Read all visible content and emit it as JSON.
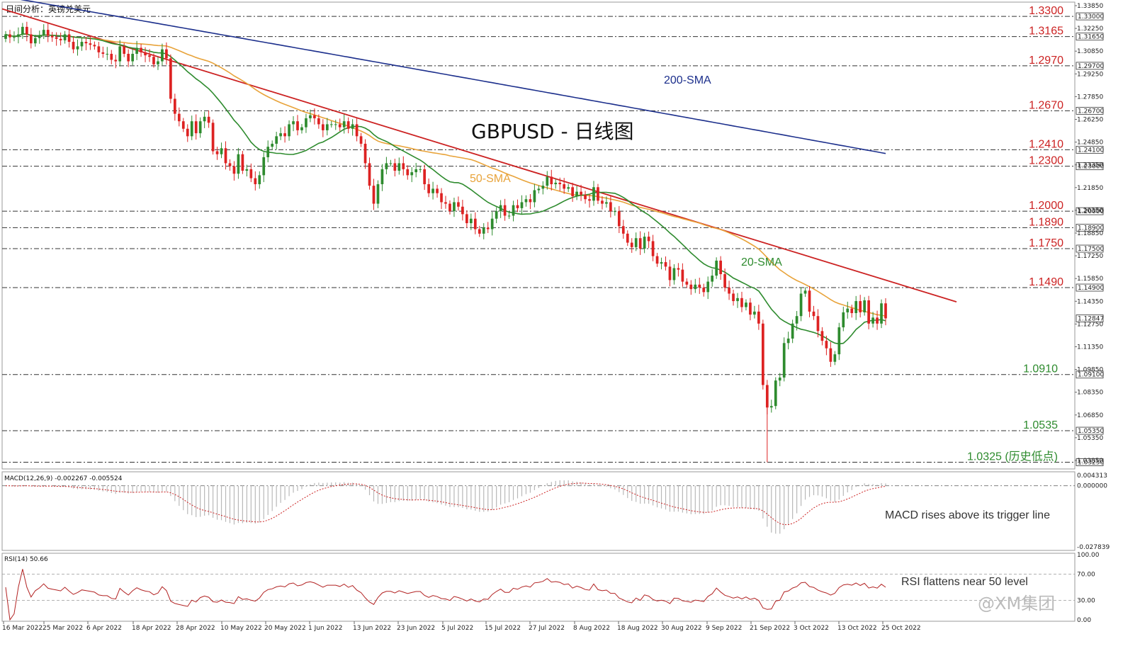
{
  "chart_data": {
    "type": "candlestick",
    "header_label": "日间分析：英镑兑美元",
    "title": "GBPUSD - 日线图",
    "x_ticks": [
      "16 Mar 2022",
      "25 Mar 2022",
      "6 Apr 2022",
      "18 Apr 2022",
      "28 Apr 2022",
      "10 May 2022",
      "20 May 2022",
      "1 Jun 2022",
      "13 Jun 2022",
      "23 Jun 2022",
      "5 Jul 2022",
      "15 Jul 2022",
      "27 Jul 2022",
      "8 Aug 2022",
      "18 Aug 2022",
      "30 Aug 2022",
      "9 Sep 2022",
      "21 Sep 2022",
      "3 Oct 2022",
      "13 Oct 2022",
      "25 Oct 2022"
    ],
    "price_axis_labels": [
      "1.33850",
      "1.32250",
      "1.30850",
      "1.29250",
      "1.27850",
      "1.26250",
      "1.24850",
      "1.23350",
      "1.21850",
      "1.20350",
      "1.18850",
      "1.17250",
      "1.15850",
      "1.14350",
      "1.12750",
      "1.11350",
      "1.09850",
      "1.08350",
      "1.06850",
      "1.05350",
      "1.03850"
    ],
    "levels": [
      {
        "value": 1.33,
        "label": "1.3300",
        "box": "1.33000",
        "color": "#cc2222"
      },
      {
        "value": 1.3165,
        "label": "1.3165",
        "box": "1.31650",
        "color": "#cc2222"
      },
      {
        "value": 1.297,
        "label": "1.2970",
        "box": "1.29700",
        "color": "#cc2222"
      },
      {
        "value": 1.267,
        "label": "1.2670",
        "box": "1.26700",
        "color": "#cc2222"
      },
      {
        "value": 1.241,
        "label": "1.2410",
        "box": "1.24100",
        "color": "#cc2222"
      },
      {
        "value": 1.23,
        "label": "1.2300",
        "box": "1.23000",
        "color": "#cc2222"
      },
      {
        "value": 1.2,
        "label": "1.2000",
        "box": "1.20000",
        "color": "#cc2222"
      },
      {
        "value": 1.189,
        "label": "1.1890",
        "box": "1.18900",
        "color": "#cc2222"
      },
      {
        "value": 1.175,
        "label": "1.1750",
        "box": "1.17500",
        "color": "#cc2222"
      },
      {
        "value": 1.149,
        "label": "1.1490",
        "box": "1.14900",
        "color": "#cc2222"
      },
      {
        "value": 1.091,
        "label": "1.0910",
        "box": "1.09100",
        "color": "#2e8b2e"
      },
      {
        "value": 1.0535,
        "label": "1.0535",
        "box": "1.05350",
        "color": "#2e8b2e"
      },
      {
        "value": 1.0325,
        "label": "1.0325 (历史低点)",
        "box": "1.03250",
        "color": "#2e8b2e"
      }
    ],
    "current_price": {
      "value": 1.12847,
      "box": "1.12847"
    },
    "ylim": [
      1.028,
      1.3395
    ],
    "sma_labels": {
      "sma200": "200-SMA",
      "sma50": "50-SMA",
      "sma20": "20-SMA"
    },
    "colors": {
      "up": "#2e8b2e",
      "down": "#dd2222",
      "sma200": "#1c2f8c",
      "sma50": "#e8a33a",
      "sma20": "#2e8b2e",
      "trend": "#cc2222"
    },
    "close": [
      1.318,
      1.316,
      1.3162,
      1.318,
      1.323,
      1.318,
      1.312,
      1.3155,
      1.3175,
      1.321,
      1.317,
      1.316,
      1.315,
      1.314,
      1.318,
      1.313,
      1.308,
      1.31,
      1.313,
      1.312,
      1.311,
      1.31,
      1.306,
      1.305,
      1.305,
      1.301,
      1.3,
      1.31,
      1.305,
      1.3,
      1.305,
      1.309,
      1.306,
      1.304,
      1.303,
      1.298,
      1.3,
      1.308,
      1.302,
      1.275,
      1.265,
      1.26,
      1.255,
      1.25,
      1.26,
      1.252,
      1.26,
      1.263,
      1.259,
      1.24,
      1.238,
      1.242,
      1.232,
      1.23,
      1.225,
      1.238,
      1.227,
      1.228,
      1.222,
      1.218,
      1.224,
      1.236,
      1.243,
      1.245,
      1.25,
      1.252,
      1.25,
      1.258,
      1.26,
      1.254,
      1.256,
      1.262,
      1.264,
      1.262,
      1.258,
      1.254,
      1.258,
      1.258,
      1.258,
      1.256,
      1.26,
      1.255,
      1.258,
      1.25,
      1.245,
      1.232,
      1.217,
      1.205,
      1.218,
      1.228,
      1.232,
      1.232,
      1.227,
      1.232,
      1.228,
      1.224,
      1.226,
      1.228,
      1.228,
      1.218,
      1.212,
      1.215,
      1.212,
      1.206,
      1.205,
      1.2,
      1.206,
      1.203,
      1.198,
      1.192,
      1.195,
      1.188,
      1.185,
      1.189,
      1.188,
      1.195,
      1.2,
      1.204,
      1.197,
      1.197,
      1.204,
      1.202,
      1.206,
      1.208,
      1.206,
      1.214,
      1.215,
      1.217,
      1.223,
      1.218,
      1.219,
      1.218,
      1.215,
      1.216,
      1.21,
      1.213,
      1.211,
      1.208,
      1.207,
      1.216,
      1.207,
      1.205,
      1.206,
      1.2,
      1.2,
      1.19,
      1.185,
      1.179,
      1.176,
      1.182,
      1.175,
      1.183,
      1.18,
      1.17,
      1.165,
      1.166,
      1.163,
      1.154,
      1.162,
      1.161,
      1.153,
      1.151,
      1.148,
      1.151,
      1.149,
      1.146,
      1.153,
      1.157,
      1.167,
      1.158,
      1.149,
      1.145,
      1.14,
      1.142,
      1.136,
      1.139,
      1.131,
      1.133,
      1.125,
      1.084,
      1.069,
      1.07,
      1.087,
      1.089,
      1.112,
      1.115,
      1.125,
      1.13,
      1.145,
      1.147,
      1.133,
      1.13,
      1.12,
      1.1135,
      1.1085,
      1.0995,
      1.1045,
      1.1225,
      1.1325,
      1.135,
      1.132,
      1.14,
      1.1325,
      1.1405,
      1.125,
      1.129,
      1.125,
      1.1385,
      1.1285
    ],
    "macd": {
      "name": "MACD(12,26,9) -0.002267 -0.005524",
      "ylim": [
        -0.0295,
        0.0052
      ],
      "axis_labels": [
        "0.004313",
        "0.000000",
        "-0.027839"
      ],
      "annotation": "MACD rises above its trigger line"
    },
    "rsi": {
      "name": "RSI(14) 50.66",
      "ylim": [
        0,
        100
      ],
      "axis_labels": [
        "100.00",
        "70.00",
        "30.00",
        "0.00"
      ],
      "annotation": "RSI flattens near 50 level"
    },
    "watermark": "@XM集团"
  }
}
